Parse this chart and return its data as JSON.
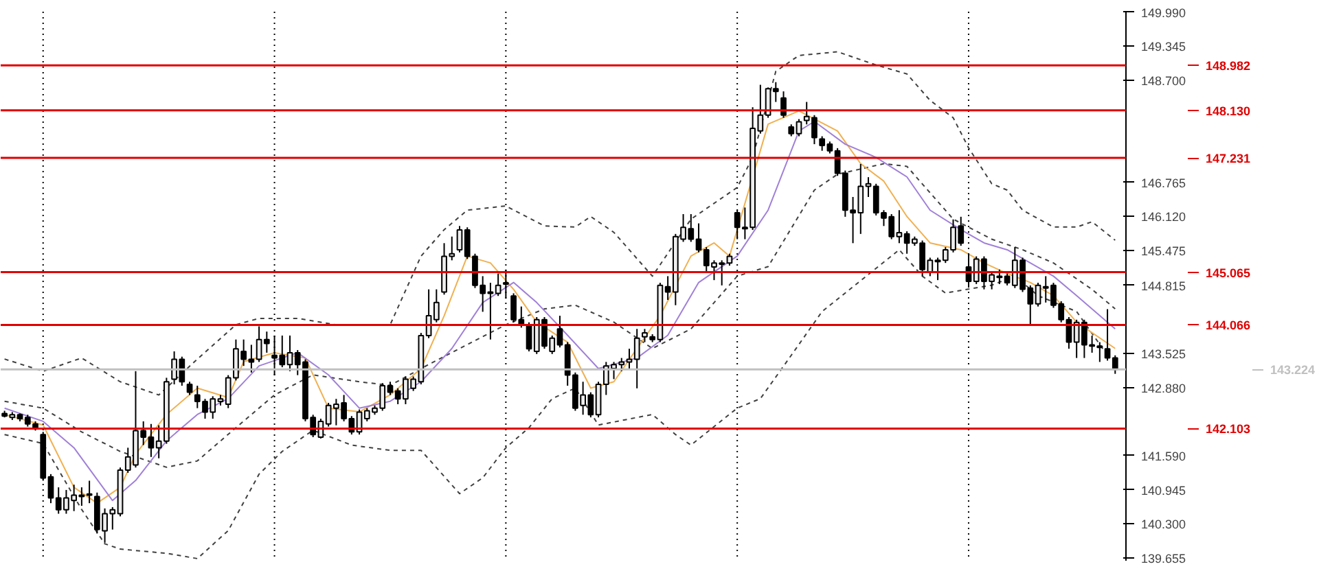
{
  "chart_data": {
    "type": "candlestick",
    "categories": [
      null,
      null,
      null,
      null,
      null,
      null,
      null,
      null,
      null,
      null,
      null,
      null,
      null,
      null,
      null,
      null,
      null,
      null,
      null,
      null,
      null,
      null,
      null,
      null,
      null,
      null,
      null,
      null,
      null,
      null,
      null,
      null,
      null,
      null,
      null,
      null,
      null,
      null,
      null,
      null,
      null,
      null,
      null,
      null,
      null,
      null,
      null,
      null,
      null,
      null,
      null,
      null,
      null,
      null,
      null,
      null,
      null,
      null,
      null,
      null,
      null,
      null,
      null,
      null,
      null,
      null,
      null,
      null,
      null,
      null,
      null,
      null,
      null,
      null,
      null,
      null,
      null,
      null,
      null,
      null,
      null,
      null,
      null,
      null,
      null,
      null,
      null,
      null,
      null,
      null,
      null,
      null,
      null,
      null,
      null,
      null,
      null,
      null,
      null,
      null,
      null,
      null,
      null,
      null,
      null,
      null,
      null,
      null,
      null,
      null,
      null,
      null,
      null,
      null,
      null,
      null,
      null,
      null,
      null,
      null,
      null,
      null,
      null,
      null,
      null,
      null,
      null,
      null,
      null,
      null,
      null,
      null,
      null,
      null,
      null,
      null,
      null,
      null,
      null,
      null,
      null,
      null,
      null,
      null,
      null
    ],
    "ohlc": [
      [
        142.39,
        142.44,
        142.315,
        142.34
      ],
      [
        142.315,
        142.415,
        142.265,
        142.365
      ],
      [
        142.365,
        142.39,
        142.24,
        142.29
      ],
      [
        142.315,
        142.365,
        142.14,
        142.19
      ],
      [
        142.19,
        142.24,
        142.065,
        142.115
      ],
      [
        141.99,
        142.04,
        141.115,
        141.165
      ],
      [
        141.19,
        141.24,
        140.69,
        140.79
      ],
      [
        140.79,
        140.99,
        140.49,
        140.565
      ],
      [
        140.565,
        140.94,
        140.49,
        140.79
      ],
      [
        140.74,
        141.04,
        140.54,
        140.84
      ],
      [
        140.84,
        140.99,
        140.64,
        140.815
      ],
      [
        140.84,
        141.115,
        140.69,
        140.865
      ],
      [
        140.815,
        140.89,
        140.115,
        140.19
      ],
      [
        140.165,
        140.59,
        139.94,
        140.49
      ],
      [
        140.49,
        140.615,
        140.19,
        140.565
      ],
      [
        140.49,
        141.365,
        140.44,
        141.315
      ],
      [
        141.315,
        141.74,
        141.265,
        141.565
      ],
      [
        141.415,
        143.19,
        141.365,
        142.065
      ],
      [
        142.065,
        142.24,
        141.79,
        141.94
      ],
      [
        141.94,
        142.19,
        141.565,
        141.74
      ],
      [
        141.74,
        142.165,
        141.54,
        141.865
      ],
      [
        141.865,
        143.065,
        141.815,
        142.99
      ],
      [
        143.04,
        143.565,
        142.94,
        143.415
      ],
      [
        143.415,
        143.465,
        142.915,
        142.99
      ],
      [
        142.94,
        142.99,
        142.74,
        142.79
      ],
      [
        142.74,
        142.915,
        142.49,
        142.615
      ],
      [
        142.615,
        142.665,
        142.29,
        142.415
      ],
      [
        142.415,
        142.715,
        142.29,
        142.665
      ],
      [
        142.615,
        142.74,
        142.54,
        142.665
      ],
      [
        142.565,
        143.115,
        142.49,
        143.065
      ],
      [
        143.065,
        143.79,
        143.015,
        143.615
      ],
      [
        143.565,
        143.79,
        143.29,
        143.415
      ],
      [
        143.415,
        143.69,
        143.165,
        143.365
      ],
      [
        143.415,
        144.04,
        143.365,
        143.79
      ],
      [
        143.79,
        143.94,
        143.54,
        143.715
      ],
      [
        143.49,
        143.865,
        143.115,
        143.44
      ],
      [
        143.49,
        143.865,
        143.265,
        143.315
      ],
      [
        143.315,
        143.865,
        143.19,
        143.54
      ],
      [
        143.54,
        143.59,
        143.115,
        143.315
      ],
      [
        143.365,
        143.415,
        142.24,
        142.29
      ],
      [
        142.315,
        142.365,
        141.94,
        141.99
      ],
      [
        141.94,
        142.29,
        141.915,
        142.24
      ],
      [
        142.19,
        142.59,
        142.14,
        142.54
      ],
      [
        142.49,
        142.665,
        142.165,
        142.565
      ],
      [
        142.59,
        142.74,
        142.24,
        142.29
      ],
      [
        142.29,
        142.34,
        141.99,
        142.04
      ],
      [
        142.04,
        142.465,
        141.99,
        142.415
      ],
      [
        142.29,
        142.49,
        142.24,
        142.44
      ],
      [
        142.415,
        142.54,
        142.365,
        142.49
      ],
      [
        142.49,
        142.965,
        142.44,
        142.915
      ],
      [
        142.915,
        142.99,
        142.74,
        142.79
      ],
      [
        142.815,
        142.865,
        142.565,
        142.665
      ],
      [
        142.665,
        143.09,
        142.565,
        143.04
      ],
      [
        142.865,
        143.09,
        142.815,
        143.04
      ],
      [
        142.99,
        143.915,
        142.94,
        143.865
      ],
      [
        143.865,
        144.74,
        143.815,
        144.24
      ],
      [
        144.165,
        144.74,
        144.115,
        144.49
      ],
      [
        144.69,
        145.615,
        144.64,
        145.365
      ],
      [
        145.365,
        145.74,
        145.29,
        145.415
      ],
      [
        145.49,
        145.94,
        145.44,
        145.865
      ],
      [
        145.865,
        145.915,
        145.315,
        145.365
      ],
      [
        145.365,
        145.415,
        144.765,
        144.815
      ],
      [
        144.815,
        144.99,
        144.315,
        144.665
      ],
      [
        144.69,
        144.865,
        143.79,
        144.665
      ],
      [
        144.665,
        145.04,
        144.615,
        144.815
      ],
      [
        144.84,
        145.115,
        144.565,
        144.865
      ],
      [
        144.615,
        144.665,
        144.115,
        144.165
      ],
      [
        144.165,
        144.415,
        144.015,
        144.065
      ],
      [
        144.065,
        144.115,
        143.565,
        143.615
      ],
      [
        143.565,
        144.215,
        143.515,
        144.165
      ],
      [
        144.165,
        144.215,
        143.615,
        143.665
      ],
      [
        143.565,
        143.865,
        143.515,
        143.815
      ],
      [
        143.99,
        144.24,
        143.64,
        143.69
      ],
      [
        143.69,
        143.74,
        142.915,
        143.115
      ],
      [
        143.115,
        143.165,
        142.44,
        142.49
      ],
      [
        142.54,
        142.99,
        142.365,
        142.74
      ],
      [
        142.74,
        142.79,
        142.315,
        142.365
      ],
      [
        142.365,
        142.99,
        142.315,
        142.94
      ],
      [
        142.94,
        143.365,
        142.74,
        143.29
      ],
      [
        143.24,
        143.365,
        143.04,
        143.315
      ],
      [
        143.315,
        143.44,
        143.19,
        143.365
      ],
      [
        143.365,
        143.615,
        143.24,
        143.415
      ],
      [
        143.415,
        143.99,
        142.865,
        143.815
      ],
      [
        143.84,
        143.99,
        143.74,
        143.915
      ],
      [
        143.84,
        143.89,
        143.74,
        143.79
      ],
      [
        143.79,
        144.865,
        143.74,
        144.815
      ],
      [
        144.79,
        144.99,
        144.54,
        144.69
      ],
      [
        144.69,
        145.79,
        144.44,
        145.74
      ],
      [
        145.69,
        146.165,
        145.64,
        145.915
      ],
      [
        145.89,
        146.165,
        145.64,
        145.69
      ],
      [
        145.69,
        145.99,
        145.44,
        145.49
      ],
      [
        145.49,
        145.54,
        145.065,
        145.19
      ],
      [
        145.165,
        145.29,
        144.915,
        145.24
      ],
      [
        145.24,
        145.29,
        144.815,
        145.215
      ],
      [
        145.24,
        145.415,
        145.19,
        145.365
      ],
      [
        146.19,
        146.24,
        145.69,
        145.915
      ],
      [
        145.915,
        146.29,
        145.69,
        145.89
      ],
      [
        145.915,
        148.19,
        145.865,
        147.79
      ],
      [
        147.74,
        148.615,
        147.69,
        148.04
      ],
      [
        148.04,
        148.565,
        147.99,
        148.54
      ],
      [
        148.54,
        148.665,
        148.29,
        148.49
      ],
      [
        148.365,
        148.49,
        147.99,
        148.04
      ],
      [
        147.815,
        147.865,
        147.64,
        147.69
      ],
      [
        147.69,
        147.965,
        147.64,
        147.915
      ],
      [
        147.94,
        148.29,
        147.865,
        148.015
      ],
      [
        147.99,
        148.04,
        147.49,
        147.615
      ],
      [
        147.59,
        147.64,
        147.365,
        147.465
      ],
      [
        147.49,
        147.54,
        147.315,
        147.365
      ],
      [
        147.365,
        147.415,
        146.89,
        146.94
      ],
      [
        146.94,
        146.99,
        146.115,
        146.24
      ],
      [
        146.24,
        146.49,
        145.615,
        146.19
      ],
      [
        146.19,
        147.115,
        145.79,
        146.69
      ],
      [
        146.69,
        146.865,
        146.49,
        146.74
      ],
      [
        146.69,
        146.74,
        146.14,
        146.19
      ],
      [
        146.19,
        146.24,
        145.94,
        146.09
      ],
      [
        146.115,
        146.165,
        145.69,
        145.74
      ],
      [
        145.74,
        146.24,
        145.615,
        145.815
      ],
      [
        145.79,
        145.84,
        145.415,
        145.615
      ],
      [
        145.615,
        145.74,
        145.565,
        145.69
      ],
      [
        145.615,
        145.665,
        144.99,
        145.115
      ],
      [
        145.065,
        145.34,
        144.99,
        145.29
      ],
      [
        145.265,
        145.34,
        144.915,
        145.29
      ],
      [
        145.29,
        145.54,
        145.24,
        145.49
      ],
      [
        145.49,
        146.065,
        145.44,
        145.915
      ],
      [
        145.94,
        146.115,
        145.565,
        145.615
      ],
      [
        145.165,
        145.415,
        144.79,
        144.89
      ],
      [
        144.89,
        145.365,
        144.84,
        145.315
      ],
      [
        145.315,
        145.365,
        144.74,
        144.89
      ],
      [
        144.89,
        145.065,
        144.74,
        145.015
      ],
      [
        144.99,
        145.115,
        144.84,
        144.965
      ],
      [
        144.99,
        145.04,
        144.815,
        144.865
      ],
      [
        144.815,
        145.54,
        144.765,
        145.29
      ],
      [
        145.29,
        145.34,
        144.69,
        144.74
      ],
      [
        144.765,
        144.815,
        144.065,
        144.465
      ],
      [
        144.465,
        144.865,
        144.415,
        144.815
      ],
      [
        144.79,
        144.99,
        144.49,
        144.765
      ],
      [
        144.815,
        144.865,
        144.39,
        144.44
      ],
      [
        144.465,
        144.515,
        144.115,
        144.165
      ],
      [
        144.165,
        144.215,
        143.615,
        143.74
      ],
      [
        143.74,
        144.165,
        143.44,
        144.115
      ],
      [
        144.115,
        144.165,
        143.44,
        143.69
      ],
      [
        143.69,
        143.865,
        143.54,
        143.665
      ],
      [
        143.665,
        143.74,
        143.365,
        143.64
      ],
      [
        143.615,
        144.365,
        143.39,
        143.44
      ],
      [
        143.44,
        143.49,
        143.14,
        143.224
      ]
    ],
    "series": [
      {
        "type": "line",
        "color": "#404040",
        "line_style": "dashed",
        "values": [
          143.42,
          null,
          null,
          null,
          null,
          143.19,
          null,
          null,
          null,
          null,
          143.44,
          null,
          null,
          null,
          null,
          142.99,
          null,
          null,
          null,
          null,
          142.74,
          null,
          null,
          null,
          null,
          143.42,
          null,
          null,
          null,
          null,
          144.07,
          null,
          null,
          144.19,
          null,
          null,
          null,
          null,
          144.19,
          null,
          null,
          null,
          null,
          144.07,
          null,
          null,
          null,
          null,
          null,
          null,
          144.07,
          null,
          null,
          null,
          145.37,
          null,
          null,
          145.87,
          null,
          null,
          146.24,
          null,
          null,
          null,
          null,
          146.32,
          null,
          null,
          null,
          null,
          145.94,
          null,
          null,
          null,
          145.92,
          null,
          146.12,
          null,
          null,
          145.82,
          null,
          null,
          null,
          null,
          144.99,
          null,
          null,
          null,
          null,
          146.07,
          null,
          null,
          null,
          null,
          null,
          146.67,
          null,
          147.24,
          null,
          null,
          148.87,
          null,
          null,
          149.17,
          null,
          null,
          null,
          null,
          149.24,
          null,
          null,
          null,
          null,
          148.99,
          null,
          null,
          null,
          148.82,
          null,
          null,
          148.32,
          null,
          null,
          147.99,
          null,
          147.42,
          null,
          null,
          146.74,
          null,
          146.62,
          null,
          146.24,
          null,
          null,
          null,
          145.92,
          null,
          null,
          145.92,
          null,
          146.02,
          null,
          null,
          145.67
        ]
      },
      {
        "type": "line",
        "color": "#404040",
        "line_style": "dashed",
        "values": [
          142.62,
          null,
          null,
          null,
          null,
          142.49,
          null,
          null,
          null,
          null,
          142.04,
          null,
          null,
          null,
          null,
          141.67,
          null,
          null,
          null,
          null,
          null,
          141.37,
          null,
          null,
          null,
          141.49,
          null,
          null,
          null,
          null,
          142.12,
          null,
          null,
          null,
          null,
          142.74,
          null,
          null,
          null,
          null,
          143.12,
          null,
          null,
          null,
          null,
          null,
          142.99,
          null,
          null,
          null,
          142.92,
          null,
          null,
          null,
          143.24,
          null,
          null,
          null,
          null,
          143.62,
          null,
          null,
          null,
          null,
          null,
          144.07,
          null,
          null,
          null,
          null,
          144.37,
          null,
          null,
          null,
          144.44,
          null,
          null,
          null,
          null,
          144.12,
          null,
          null,
          null,
          null,
          143.62,
          null,
          null,
          null,
          null,
          143.99,
          null,
          null,
          null,
          null,
          null,
          144.99,
          null,
          null,
          null,
          145.17,
          null,
          null,
          null,
          null,
          null,
          146.62,
          null,
          null,
          146.92,
          null,
          null,
          null,
          null,
          null,
          147.12,
          null,
          null,
          147.07,
          null,
          null,
          null,
          null,
          null,
          146.07,
          null,
          null,
          null,
          null,
          145.69,
          null,
          null,
          null,
          145.49,
          null,
          null,
          null,
          145.24,
          null,
          null,
          null,
          null,
          144.74,
          null,
          null,
          144.37
        ]
      },
      {
        "type": "line",
        "color": "#404040",
        "line_style": "dashed",
        "values": [
          141.99,
          null,
          null,
          null,
          null,
          141.82,
          null,
          null,
          null,
          null,
          140.57,
          null,
          null,
          139.92,
          null,
          139.82,
          null,
          null,
          null,
          null,
          null,
          139.74,
          null,
          null,
          null,
          139.64,
          null,
          null,
          null,
          140.17,
          null,
          null,
          null,
          141.24,
          null,
          null,
          141.67,
          null,
          null,
          null,
          142.07,
          null,
          null,
          null,
          null,
          141.79,
          null,
          null,
          null,
          null,
          141.69,
          null,
          null,
          null,
          141.69,
          null,
          null,
          null,
          null,
          140.87,
          null,
          null,
          141.17,
          null,
          null,
          141.74,
          null,
          null,
          142.12,
          null,
          null,
          142.67,
          null,
          null,
          142.87,
          null,
          null,
          142.17,
          null,
          null,
          null,
          null,
          null,
          null,
          142.37,
          null,
          null,
          141.99,
          null,
          141.79,
          null,
          null,
          null,
          null,
          null,
          142.49,
          null,
          null,
          142.67,
          null,
          null,
          null,
          143.49,
          null,
          null,
          null,
          144.32,
          null,
          null,
          144.67,
          null,
          null,
          null,
          null,
          null,
          null,
          145.49,
          null,
          null,
          144.99,
          null,
          null,
          144.67,
          null,
          null,
          null,
          null,
          null,
          144.82,
          null,
          null,
          144.99,
          null,
          null,
          144.62,
          null,
          null,
          null,
          null,
          144.32,
          null,
          null,
          null,
          143.49,
          null
        ]
      },
      {
        "type": "line",
        "color": "#f0b050",
        "line_style": "solid",
        "values": [
          142.37,
          null,
          null,
          null,
          null,
          142.17,
          null,
          null,
          null,
          140.99,
          null,
          null,
          140.69,
          null,
          null,
          140.99,
          null,
          141.62,
          null,
          null,
          null,
          142.37,
          null,
          null,
          null,
          142.87,
          null,
          null,
          null,
          142.69,
          null,
          143.37,
          null,
          null,
          null,
          143.54,
          null,
          null,
          null,
          143.44,
          null,
          null,
          142.49,
          null,
          null,
          null,
          142.42,
          null,
          null,
          null,
          142.74,
          null,
          null,
          null,
          143.24,
          null,
          null,
          144.24,
          null,
          null,
          145.37,
          null,
          null,
          145.24,
          null,
          null,
          144.74,
          null,
          null,
          144.12,
          null,
          null,
          null,
          143.74,
          null,
          null,
          142.87,
          null,
          null,
          142.99,
          null,
          null,
          143.62,
          null,
          null,
          144.24,
          null,
          null,
          null,
          145.37,
          null,
          null,
          145.62,
          null,
          145.37,
          null,
          null,
          null,
          null,
          147.87,
          null,
          null,
          null,
          148.12,
          null,
          null,
          null,
          null,
          147.74,
          null,
          null,
          147.12,
          null,
          null,
          146.79,
          null,
          null,
          146.12,
          null,
          null,
          145.62,
          null,
          null,
          null,
          145.49,
          null,
          null,
          145.24,
          null,
          null,
          145.04,
          null,
          null,
          144.87,
          null,
          null,
          144.62,
          null,
          null,
          144.12,
          null,
          null,
          null,
          null,
          143.62
        ]
      },
      {
        "type": "line",
        "color": "#a080d8",
        "line_style": "solid",
        "values": [
          142.49,
          null,
          null,
          null,
          null,
          142.24,
          null,
          null,
          null,
          141.74,
          null,
          null,
          null,
          null,
          140.74,
          null,
          null,
          141.12,
          null,
          null,
          null,
          141.87,
          null,
          null,
          null,
          142.37,
          null,
          null,
          null,
          142.67,
          null,
          null,
          null,
          143.29,
          null,
          null,
          null,
          null,
          143.54,
          null,
          null,
          null,
          143.12,
          null,
          null,
          null,
          142.49,
          null,
          null,
          null,
          142.62,
          null,
          null,
          null,
          142.99,
          null,
          null,
          null,
          143.62,
          null,
          null,
          null,
          144.49,
          null,
          null,
          null,
          144.87,
          null,
          null,
          144.49,
          null,
          null,
          null,
          143.87,
          null,
          null,
          null,
          143.24,
          null,
          null,
          null,
          null,
          143.44,
          null,
          null,
          null,
          143.87,
          null,
          null,
          null,
          144.87,
          null,
          null,
          null,
          null,
          145.37,
          null,
          null,
          null,
          146.24,
          null,
          null,
          null,
          147.74,
          null,
          147.92,
          null,
          null,
          null,
          147.49,
          null,
          null,
          null,
          147.24,
          null,
          null,
          null,
          146.87,
          null,
          null,
          146.24,
          null,
          null,
          null,
          145.87,
          null,
          null,
          145.62,
          null,
          null,
          145.49,
          null,
          null,
          145.24,
          null,
          null,
          144.99,
          null,
          null,
          144.62,
          null,
          null,
          null,
          null,
          143.99
        ]
      }
    ],
    "ylim": [
      139.6,
      150.0
    ],
    "yticks": [
      {
        "value": 149.99,
        "label": "149.990"
      },
      {
        "value": 149.345,
        "label": "149.345"
      },
      {
        "value": 148.7,
        "label": "148.700"
      },
      {
        "value": 146.765,
        "label": "146.765"
      },
      {
        "value": 146.12,
        "label": "146.120"
      },
      {
        "value": 145.475,
        "label": "145.475"
      },
      {
        "value": 144.815,
        "label": "144.815"
      },
      {
        "value": 143.525,
        "label": "143.525"
      },
      {
        "value": 142.88,
        "label": "142.880"
      },
      {
        "value": 141.59,
        "label": "141.590"
      },
      {
        "value": 140.945,
        "label": "140.945"
      },
      {
        "value": 140.3,
        "label": "140.300"
      },
      {
        "value": 139.655,
        "label": "139.655"
      }
    ],
    "tick_labels": "y",
    "ref_lines": [
      {
        "axis": "y",
        "value": 148.982,
        "label": "148.982",
        "color": "#e00000"
      },
      {
        "axis": "y",
        "value": 148.13,
        "label": "148.130",
        "color": "#e00000"
      },
      {
        "axis": "y",
        "value": 147.231,
        "label": "147.231",
        "color": "#e00000"
      },
      {
        "axis": "y",
        "value": 145.065,
        "label": "145.065",
        "color": "#e00000"
      },
      {
        "axis": "y",
        "value": 144.066,
        "label": "144.066",
        "color": "#e00000"
      },
      {
        "axis": "y",
        "value": 142.103,
        "label": "142.103",
        "color": "#e00000"
      },
      {
        "axis": "y",
        "value": 143.224,
        "label": "143.224",
        "color": "#c0c0c0"
      }
    ]
  }
}
